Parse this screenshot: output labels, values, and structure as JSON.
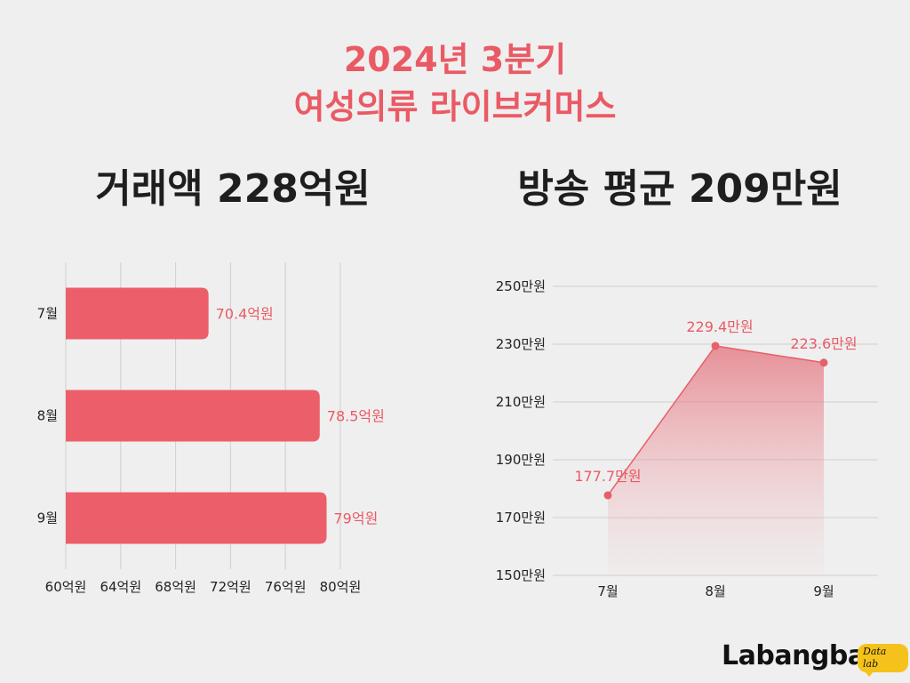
{
  "title": {
    "line1": "2024년 3분기",
    "line2": "여성의류 라이브커머스"
  },
  "headlines": {
    "left": "거래액 228억원",
    "right": "방송 평균 209만원"
  },
  "colors": {
    "accent": "#ea5a65",
    "bar": "#ec5f6a",
    "line": "#e5606a",
    "grid": "#cfcfcf",
    "text": "#222222"
  },
  "logo": {
    "name": "Labangba",
    "badge": "Data lab"
  },
  "chart_data": [
    {
      "type": "bar",
      "orientation": "horizontal",
      "categories": [
        "7월",
        "8월",
        "9월"
      ],
      "values": [
        70.4,
        78.5,
        79
      ],
      "value_labels": [
        "70.4억원",
        "78.5억원",
        "79억원"
      ],
      "xlim": [
        60,
        81.2
      ],
      "xticks": [
        60,
        64,
        68,
        72,
        76,
        80
      ],
      "xtick_labels": [
        "60억원",
        "64억원",
        "68억원",
        "72억원",
        "76억원",
        "80억원"
      ],
      "grid": "vertical"
    },
    {
      "type": "area",
      "categories": [
        "7월",
        "8월",
        "9월"
      ],
      "values": [
        177.7,
        229.4,
        223.6
      ],
      "value_labels": [
        "177.7만원",
        "229.4만원",
        "223.6만원"
      ],
      "ylim": [
        150,
        250
      ],
      "yticks": [
        150,
        170,
        190,
        210,
        230,
        250
      ],
      "ytick_labels": [
        "150만원",
        "170만원",
        "190만원",
        "210만원",
        "230만원",
        "250만원"
      ],
      "grid": "horizontal"
    }
  ]
}
